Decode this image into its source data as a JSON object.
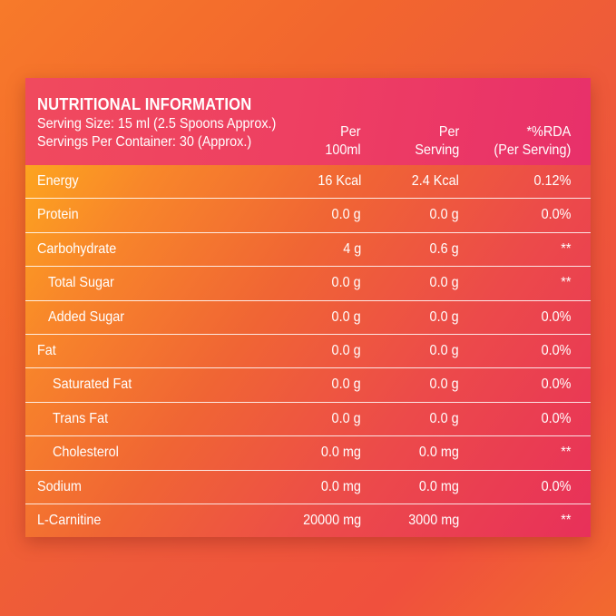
{
  "header": {
    "title": "NUTRITIONAL INFORMATION",
    "serving_size": "Serving Size: 15 ml (2.5 Spoons Approx.)",
    "servings_per_container": "Servings Per Container: 30 (Approx.)",
    "col_per100_l1": "Per",
    "col_per100_l2": "100ml",
    "col_perserving_l1": "Per",
    "col_perserving_l2": "Serving",
    "col_rda_l1": "*%RDA",
    "col_rda_l2": "(Per Serving)"
  },
  "rows": [
    {
      "name": "Energy",
      "per100": "16 Kcal",
      "perserving": "2.4 Kcal",
      "rda": "0.12%"
    },
    {
      "name": "Protein",
      "per100": "0.0 g",
      "perserving": "0.0 g",
      "rda": "0.0%"
    },
    {
      "name": "Carbohydrate",
      "per100": "4 g",
      "perserving": "0.6 g",
      "rda": "**"
    },
    {
      "name": "Total Sugar",
      "per100": "0.0 g",
      "perserving": "0.0 g",
      "rda": "**"
    },
    {
      "name": "Added Sugar",
      "per100": "0.0 g",
      "perserving": "0.0 g",
      "rda": "0.0%"
    },
    {
      "name": "Fat",
      "per100": "0.0 g",
      "perserving": "0.0 g",
      "rda": "0.0%"
    },
    {
      "name": "Saturated Fat",
      "per100": "0.0 g",
      "perserving": "0.0 g",
      "rda": "0.0%"
    },
    {
      "name": "Trans Fat",
      "per100": "0.0 g",
      "perserving": "0.0 g",
      "rda": "0.0%"
    },
    {
      "name": "Cholesterol",
      "per100": "0.0 mg",
      "perserving": "0.0 mg",
      "rda": "**"
    },
    {
      "name": "Sodium",
      "per100": "0.0 mg",
      "perserving": "0.0 mg",
      "rda": "0.0%"
    },
    {
      "name": "L-Carnitine",
      "per100": "20000 mg",
      "perserving": "3000 mg",
      "rda": "**"
    }
  ],
  "colors": {
    "background": "#f26a2f",
    "header": "#ee3f62",
    "text": "#ffffff"
  }
}
